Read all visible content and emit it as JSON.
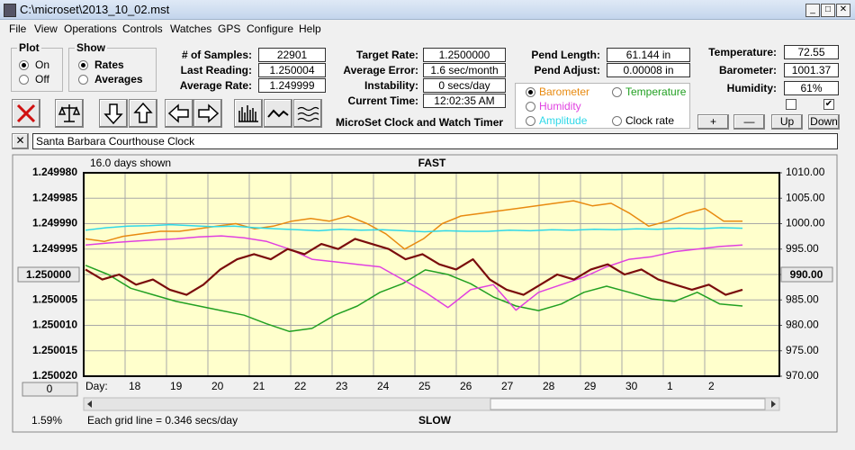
{
  "window": {
    "title": "C:\\microset\\2013_10_02.mst"
  },
  "menu": [
    "File",
    "View",
    "Operations",
    "Controls",
    "Watches",
    "GPS",
    "Configure",
    "Help"
  ],
  "plot_group": {
    "title": "Plot",
    "options": [
      "On",
      "Off"
    ]
  },
  "show_group": {
    "title": "Show",
    "options": [
      "Rates",
      "Averages"
    ]
  },
  "readouts": [
    {
      "label": "# of Samples:",
      "value": "22901"
    },
    {
      "label": "Last Reading:",
      "value": "1.250004"
    },
    {
      "label": "Average Rate:",
      "value": "1.249999"
    },
    {
      "label": "Target Rate:",
      "value": "1.2500000"
    },
    {
      "label": "Average Error:",
      "value": "1.6 sec/month"
    },
    {
      "label": "Instability:",
      "value": "0 secs/day"
    },
    {
      "label": "Current Time:",
      "value": "12:02:35 AM"
    },
    {
      "label": "Pend Length:",
      "value": "61.144 in"
    },
    {
      "label": "Pend Adjust:",
      "value": "0.00008 in"
    },
    {
      "label": "Temperature:",
      "value": "72.55"
    },
    {
      "label": "Barometer:",
      "value": "1001.37"
    },
    {
      "label": "Humidity:",
      "value": "61%"
    }
  ],
  "app_name": "MicroSet Clock and Watch Timer",
  "buttons": [
    "+",
    "—",
    "Up",
    "Down"
  ],
  "clock_name": "Santa Barbara Courthouse Clock",
  "chart_data": {
    "type": "line",
    "days_shown": "16.0 days shown",
    "top_label": "FAST",
    "bottom_label": "SLOW",
    "x_label": "Day:",
    "x_tick_labels": [
      "18",
      "19",
      "20",
      "21",
      "22",
      "23",
      "24",
      "25",
      "26",
      "27",
      "28",
      "29",
      "30",
      "1",
      "2"
    ],
    "offset_button": "0",
    "percent": "1.59%",
    "grid_note": "Each grid line = 0.346 secs/day",
    "grid": true,
    "ylim": [
      1.25002,
      1.24998
    ],
    "yticks": [
      {
        "value": 1.24998,
        "label": "1.249980"
      },
      {
        "value": 1.249985,
        "label": "1.249985"
      },
      {
        "value": 1.24999,
        "label": "1.249990"
      },
      {
        "value": 1.249995,
        "label": "1.249995"
      },
      {
        "value": 1.25,
        "label": "1.250000"
      },
      {
        "value": 1.250005,
        "label": "1.250005"
      },
      {
        "value": 1.25001,
        "label": "1.250010"
      },
      {
        "value": 1.250015,
        "label": "1.250015"
      },
      {
        "value": 1.25002,
        "label": "1.250020"
      }
    ],
    "y2lim": [
      970,
      1010
    ],
    "y2ticks": [
      {
        "value": 1010,
        "label": "1010.00"
      },
      {
        "value": 1005,
        "label": "1005.00"
      },
      {
        "value": 1000,
        "label": "1000.00"
      },
      {
        "value": 995,
        "label": "995.00"
      },
      {
        "value": 990,
        "label": "990.00"
      },
      {
        "value": 985,
        "label": "985.00"
      },
      {
        "value": 980,
        "label": "980.00"
      },
      {
        "value": 975,
        "label": "975.00"
      },
      {
        "value": 970,
        "label": "970.00"
      }
    ],
    "series": [
      {
        "name": "Barometer",
        "color": "#e88a10",
        "axis": "y2",
        "values": [
          997,
          996.5,
          997.5,
          998,
          998.5,
          998.5,
          999,
          999.5,
          1000,
          999,
          999.5,
          1000.5,
          1001,
          1000.5,
          1001.5,
          1000,
          998,
          995,
          997,
          1000,
          1001.5,
          1002,
          1002.5,
          1003,
          1003.5,
          1004,
          1004.5,
          1003.5,
          1004,
          1002,
          999.5,
          1000.5,
          1002,
          1003,
          1000.5,
          1000.5
        ]
      },
      {
        "name": "Temperature",
        "color": "#22a022",
        "axis": "y2",
        "values": [
          991.8,
          990,
          987.3,
          986,
          984.7,
          983.8,
          982.9,
          982,
          980.3,
          978.8,
          979.4,
          982,
          983.8,
          986.5,
          988.2,
          990.9,
          990,
          988.2,
          985.6,
          983.8,
          982.9,
          984.2,
          986.5,
          987.7,
          986.5,
          985.2,
          984.7,
          986.5,
          984.2,
          983.8
        ]
      },
      {
        "name": "Humidity",
        "color": "#e040e0",
        "axis": "y2",
        "values": [
          995.8,
          996.2,
          996.5,
          996.8,
          997,
          997.4,
          997.6,
          997.2,
          996.5,
          995,
          993,
          992.5,
          992,
          991.5,
          989,
          986.5,
          983.5,
          987,
          988,
          983,
          986.5,
          988,
          989.5,
          991.5,
          993,
          993.5,
          994.5,
          995,
          995.5,
          995.8
        ]
      },
      {
        "name": "Amplitude",
        "color": "#30d8e8",
        "axis": "y2",
        "values": [
          998.7,
          999.2,
          999.5,
          999.6,
          999.8,
          999.6,
          999.4,
          999.5,
          999.2,
          999,
          998.8,
          998.6,
          998.9,
          998.7,
          998.8,
          998.6,
          998.4,
          998.6,
          998.5,
          998.5,
          998.7,
          998.6,
          998.8,
          998.7,
          998.9,
          998.8,
          999,
          998.9,
          999.1,
          999,
          999.2,
          999.1
        ]
      },
      {
        "name": "Clock rate",
        "color": "#7a0c0c",
        "label_color": "#000000",
        "values": [
          1.249999,
          1.250001,
          1.25,
          1.250002,
          1.250001,
          1.250003,
          1.250004,
          1.250002,
          1.249999,
          1.249997,
          1.249996,
          1.249997,
          1.249995,
          1.249996,
          1.249994,
          1.249995,
          1.249993,
          1.249994,
          1.249995,
          1.249997,
          1.249996,
          1.249998,
          1.249999,
          1.249997,
          1.250001,
          1.250003,
          1.250004,
          1.250002,
          1.25,
          1.250001,
          1.249999,
          1.249998,
          1.25,
          1.249999,
          1.250001,
          1.250002,
          1.250003,
          1.250002,
          1.250004,
          1.250003
        ]
      }
    ]
  }
}
